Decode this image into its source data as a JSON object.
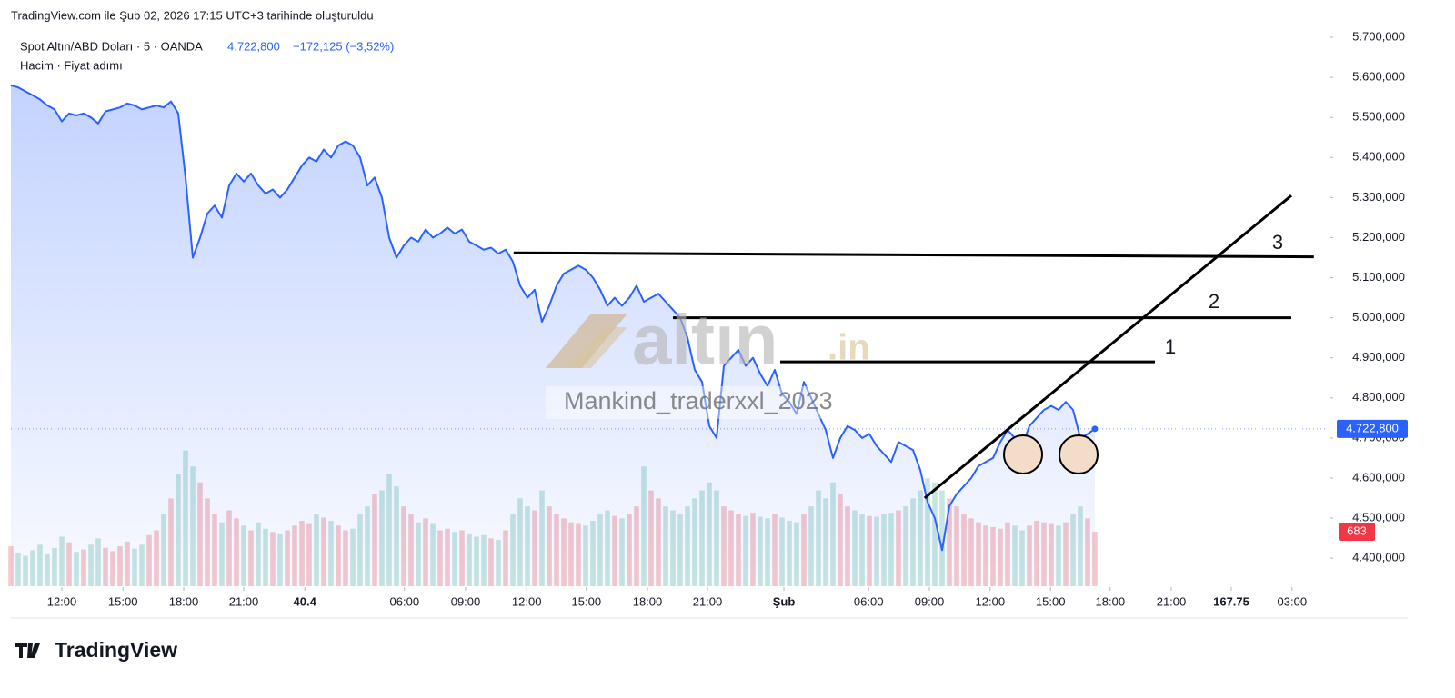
{
  "header": {
    "title": "TradingView.com ile Şub 02, 2026 17:15 UTC+3 tarihinde oluşturuldu"
  },
  "chart_data": {
    "type": "line",
    "title": "Spot Altın/ABD Doları · 5 · OANDA",
    "last_price": {
      "value": 4722800,
      "label": "4.722,800"
    },
    "change": {
      "value": -172125,
      "percent": -3.52,
      "label": "−172,125 (−3,52%)"
    },
    "subtitle": "Hacim · Fiyat adımı",
    "watermark": [
      "altın",
      ".in",
      "Mankind_traderxxl_2023"
    ],
    "series": [
      {
        "name": "Spot Altın/ABD Doları",
        "color": "#2962ff",
        "values": [
          5580000,
          5575000,
          5565000,
          5555000,
          5545000,
          5530000,
          5520000,
          5490000,
          5510000,
          5505000,
          5510000,
          5500000,
          5485000,
          5515000,
          5520000,
          5525000,
          5535000,
          5530000,
          5520000,
          5525000,
          5530000,
          5525000,
          5540000,
          5510000,
          5350000,
          5150000,
          5200000,
          5260000,
          5280000,
          5250000,
          5330000,
          5360000,
          5340000,
          5360000,
          5330000,
          5310000,
          5320000,
          5300000,
          5320000,
          5350000,
          5380000,
          5400000,
          5390000,
          5420000,
          5400000,
          5430000,
          5440000,
          5430000,
          5400000,
          5330000,
          5350000,
          5300000,
          5200000,
          5150000,
          5180000,
          5200000,
          5190000,
          5220000,
          5200000,
          5210000,
          5225000,
          5210000,
          5220000,
          5190000,
          5180000,
          5170000,
          5175000,
          5160000,
          5170000,
          5140000,
          5080000,
          5050000,
          5070000,
          4990000,
          5030000,
          5080000,
          5110000,
          5120000,
          5130000,
          5120000,
          5100000,
          5070000,
          5030000,
          5050000,
          5030000,
          5050000,
          5080000,
          5040000,
          5050000,
          5060000,
          5040000,
          5020000,
          5000000,
          4950000,
          4870000,
          4840000,
          4730000,
          4700000,
          4880000,
          4900000,
          4920000,
          4880000,
          4900000,
          4860000,
          4830000,
          4870000,
          4810000,
          4790000,
          4760000,
          4840000,
          4800000,
          4760000,
          4720000,
          4650000,
          4700000,
          4730000,
          4720000,
          4700000,
          4710000,
          4680000,
          4660000,
          4640000,
          4690000,
          4680000,
          4670000,
          4620000,
          4540000,
          4500000,
          4420000,
          4530000,
          4560000,
          4580000,
          4600000,
          4630000,
          4640000,
          4650000,
          4690000,
          4720000,
          4700000,
          4680000,
          4730000,
          4750000,
          4770000,
          4780000,
          4770000,
          4790000,
          4770000,
          4700000,
          4710000,
          4722800
        ]
      }
    ],
    "volume": {
      "name": "Hacim",
      "up_color": "#f7c9cc",
      "down_color": "#c8e6e1",
      "last": 683,
      "values": [
        500,
        420,
        380,
        450,
        520,
        400,
        480,
        620,
        550,
        430,
        460,
        520,
        600,
        480,
        440,
        500,
        560,
        470,
        520,
        640,
        700,
        900,
        1100,
        1400,
        1700,
        1500,
        1300,
        1100,
        900,
        800,
        950,
        850,
        760,
        700,
        800,
        720,
        680,
        650,
        700,
        760,
        820,
        780,
        900,
        860,
        820,
        760,
        700,
        720,
        900,
        1000,
        1150,
        1200,
        1400,
        1250,
        1000,
        900,
        800,
        850,
        780,
        700,
        720,
        680,
        700,
        650,
        620,
        640,
        600,
        580,
        700,
        900,
        1100,
        1000,
        950,
        1200,
        1000,
        900,
        850,
        800,
        780,
        760,
        820,
        900,
        950,
        880,
        850,
        900,
        1000,
        1500,
        1200,
        1100,
        1000,
        950,
        900,
        1000,
        1100,
        1200,
        1300,
        1200,
        1000,
        950,
        900,
        880,
        920,
        870,
        850,
        900,
        860,
        820,
        800,
        900,
        1000,
        1200,
        1100,
        1300,
        1150,
        1000,
        950,
        900,
        880,
        870,
        900,
        920,
        950,
        1000,
        1100,
        1200,
        1350,
        1300,
        1200,
        1100,
        1000,
        900,
        850,
        800,
        760,
        740,
        720,
        800,
        760,
        700,
        760,
        820,
        800,
        780,
        760,
        800,
        900,
        1000,
        850,
        683
      ]
    },
    "xlim": [
      0,
      181
    ],
    "xticks": [
      {
        "value": 7,
        "label": "12:00"
      },
      {
        "value": 15.4,
        "label": "15:00"
      },
      {
        "value": 23.75,
        "label": "18:00"
      },
      {
        "value": 32,
        "label": "21:00"
      },
      40.4,
      {
        "value": 54.1,
        "label": "06:00"
      },
      {
        "value": 62.5,
        "label": "09:00"
      },
      {
        "value": 70.9,
        "label": "12:00"
      },
      {
        "value": 79.1,
        "label": "15:00"
      },
      {
        "value": 87.5,
        "label": "18:00"
      },
      {
        "value": 95.75,
        "label": "21:00"
      },
      {
        "value": 106.25,
        "label": "Şub"
      },
      {
        "value": 117.9,
        "label": "06:00"
      },
      {
        "value": 126.25,
        "label": "09:00"
      },
      {
        "value": 134.6,
        "label": "12:00"
      },
      {
        "value": 142.9,
        "label": "15:00"
      },
      {
        "value": 151.1,
        "label": "18:00"
      },
      {
        "value": 159.5,
        "label": "21:00"
      },
      167.75,
      {
        "value": 176.1,
        "label": "03:00"
      }
    ],
    "ylim": [
      4330000,
      5725000
    ],
    "yticks": [
      {
        "value": 4400000,
        "label": "4.400,000"
      },
      {
        "value": 4500000,
        "label": "4.500,000"
      },
      {
        "value": 4600000,
        "label": "4.600,000"
      },
      {
        "value": 4700000,
        "label": "4.700,000"
      },
      {
        "value": 4800000,
        "label": "4.800,000"
      },
      {
        "value": 4900000,
        "label": "4.900,000"
      },
      {
        "value": 5000000,
        "label": "5.000,000"
      },
      {
        "value": 5100000,
        "label": "5.100,000"
      },
      {
        "value": 5200000,
        "label": "5.200,000"
      },
      {
        "value": 5300000,
        "label": "5.300,000"
      },
      {
        "value": 5400000,
        "label": "5.400,000"
      },
      {
        "value": 5500000,
        "label": "5.500,000"
      },
      {
        "value": 5600000,
        "label": "5.600,000"
      },
      {
        "value": 5700000,
        "label": "5.700,000"
      }
    ],
    "y2lim": [
      0,
      7000
    ],
    "drawings": [
      {
        "label": "3",
        "x": [
          69.1,
          179.1
        ],
        "values": [
          5162000,
          5152000
        ]
      },
      {
        "label": "2",
        "x": [
          91,
          176
        ],
        "values": [
          5000000,
          5000000
        ]
      },
      {
        "label": "1",
        "x": [
          105.75,
          157.25
        ],
        "values": [
          4890000,
          4890000
        ]
      },
      {
        "x": [
          125.6,
          176
        ],
        "values": [
          4550000,
          5305000
        ]
      }
    ]
  },
  "footer": {
    "logo": "TradingView"
  }
}
